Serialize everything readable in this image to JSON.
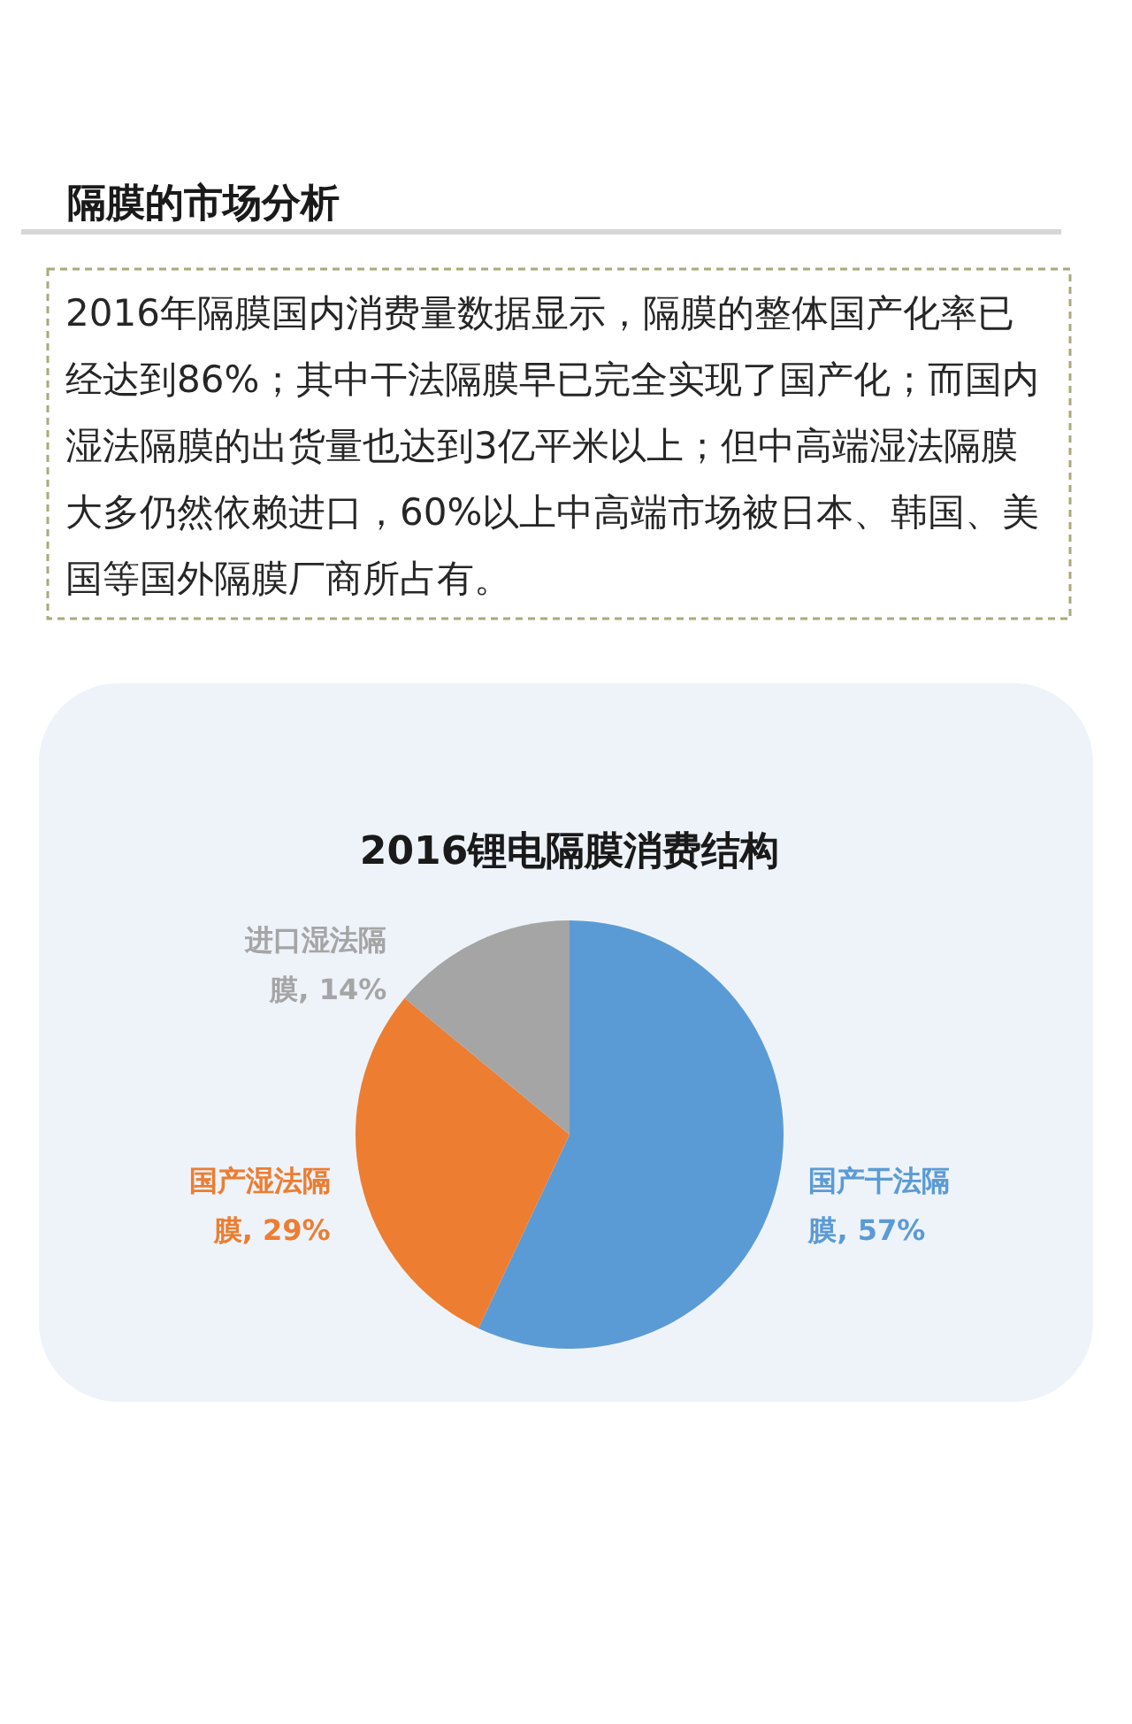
{
  "chart_data": {
    "type": "pie",
    "title": "2016锂电隔膜消费结构",
    "categories": [
      "国产干法隔膜",
      "国产湿法隔膜",
      "进口湿法隔膜"
    ],
    "values": [
      57,
      29,
      14
    ],
    "colors": [
      "#5b9bd5",
      "#ed7d31",
      "#a5a5a5"
    ],
    "value_labels": [
      "57%",
      "29%",
      "14%"
    ],
    "annotations": [
      "隔膜的市场分析",
      "2016年隔膜国内消费量数据显示，隔膜的整体国产化率已经达到86%；其中干法隔膜早已完全实现了国产化；而国内湿法隔膜的出货量也达到3亿平米以上；但中高端湿法隔膜大多仍然依赖进口，60%以上中高端市场被日本、韩国、美国等国外隔膜厂商所占有。"
    ]
  }
}
